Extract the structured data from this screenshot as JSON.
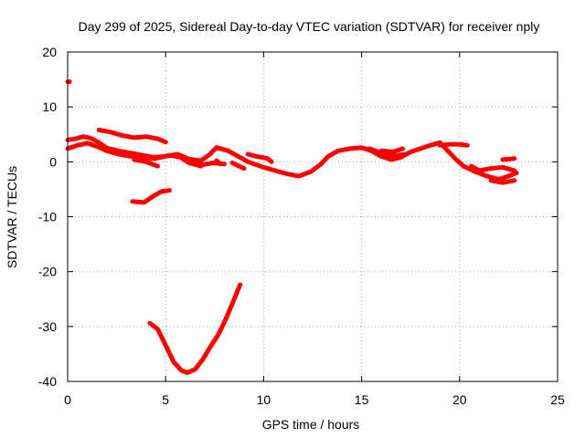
{
  "chart_data": {
    "type": "scatter",
    "title": "Day 299 of 2025, Sidereal Day-to-day VTEC variation (SDTVAR) for receiver nply",
    "xlabel": "GPS time / hours",
    "ylabel": "SDTVAR / TECUs",
    "xlim": [
      0,
      25
    ],
    "ylim": [
      -40,
      20
    ],
    "x_ticks": [
      0,
      5,
      10,
      15,
      20,
      25
    ],
    "y_ticks": [
      -40,
      -30,
      -20,
      -10,
      0,
      10,
      20
    ],
    "grid": true,
    "series_color": "#ff0000",
    "series": [
      {
        "name": "trace-a",
        "points": [
          [
            0,
            4
          ],
          [
            0.4,
            4.2
          ],
          [
            0.8,
            4.6
          ],
          [
            1.2,
            4.3
          ],
          [
            1.6,
            3.5
          ],
          [
            2.0,
            2.5
          ],
          [
            2.6,
            2.0
          ],
          [
            3.2,
            1.6
          ],
          [
            3.8,
            1.2
          ],
          [
            4.4,
            0.8
          ],
          [
            5.0,
            1.0
          ],
          [
            5.6,
            1.4
          ],
          [
            6.2,
            0.5
          ],
          [
            6.8,
            0.2
          ],
          [
            7.2,
            1.2
          ],
          [
            7.6,
            2.6
          ],
          [
            8.2,
            2.0
          ],
          [
            8.8,
            0.8
          ],
          [
            9.2,
            0.0
          ],
          [
            10.0,
            -1.0
          ],
          [
            10.6,
            -1.6
          ],
          [
            11.2,
            -2.2
          ],
          [
            11.8,
            -2.6
          ],
          [
            12.4,
            -1.8
          ],
          [
            12.9,
            -0.5
          ],
          [
            13.3,
            1.0
          ],
          [
            13.8,
            2.0
          ],
          [
            14.4,
            2.4
          ],
          [
            15.0,
            2.6
          ],
          [
            15.5,
            2.0
          ],
          [
            16.0,
            1.0
          ],
          [
            16.5,
            0.4
          ],
          [
            17.0,
            0.8
          ],
          [
            17.5,
            1.8
          ],
          [
            18.0,
            2.4
          ],
          [
            18.5,
            3.0
          ],
          [
            19.0,
            3.5
          ],
          [
            19.4,
            2.0
          ],
          [
            19.8,
            0.5
          ],
          [
            20.2,
            -0.8
          ],
          [
            20.8,
            -1.8
          ],
          [
            21.4,
            -2.6
          ],
          [
            22.0,
            -3.2
          ],
          [
            22.5,
            -2.6
          ],
          [
            22.9,
            -2.0
          ]
        ]
      },
      {
        "name": "trace-b",
        "points": [
          [
            0,
            2.4
          ],
          [
            0.5,
            3.0
          ],
          [
            1.0,
            3.4
          ],
          [
            1.5,
            2.8
          ],
          [
            2.0,
            2.0
          ],
          [
            2.6,
            1.4
          ],
          [
            3.2,
            1.0
          ],
          [
            3.8,
            0.6
          ],
          [
            4.5,
            0.6
          ],
          [
            5.2,
            1.2
          ],
          [
            5.8,
            0.8
          ],
          [
            6.3,
            -0.2
          ],
          [
            6.8,
            -0.6
          ],
          [
            7.4,
            -0.2
          ],
          [
            8.0,
            -0.4
          ]
        ]
      },
      {
        "name": "trace-c",
        "points": [
          [
            1.6,
            5.8
          ],
          [
            2.2,
            5.4
          ],
          [
            2.8,
            4.8
          ],
          [
            3.4,
            4.4
          ],
          [
            4.0,
            4.6
          ],
          [
            4.6,
            4.2
          ],
          [
            5.0,
            3.6
          ]
        ]
      },
      {
        "name": "trace-d",
        "points": [
          [
            3.4,
            0.4
          ],
          [
            4.0,
            0.0
          ],
          [
            4.6,
            -0.8
          ]
        ]
      },
      {
        "name": "trace-e",
        "points": [
          [
            5.6,
            1.2
          ],
          [
            6.2,
            -0.2
          ],
          [
            6.8,
            -0.8
          ]
        ]
      },
      {
        "name": "trace-f",
        "points": [
          [
            7.6,
            0.2
          ],
          [
            7.8,
            -0.4
          ]
        ]
      },
      {
        "name": "trace-g",
        "points": [
          [
            8.4,
            -0.2
          ],
          [
            9.0,
            -1.2
          ]
        ]
      },
      {
        "name": "trace-h",
        "points": [
          [
            9.2,
            1.4
          ],
          [
            9.6,
            1.0
          ],
          [
            10.2,
            0.6
          ],
          [
            10.4,
            0.0
          ]
        ]
      },
      {
        "name": "trace-i",
        "points": [
          [
            15.4,
            2.4
          ],
          [
            16.0,
            1.6
          ],
          [
            16.6,
            1.0
          ],
          [
            17.2,
            1.4
          ]
        ]
      },
      {
        "name": "trace-j",
        "points": [
          [
            16.0,
            2.0
          ],
          [
            16.6,
            1.8
          ],
          [
            17.1,
            2.4
          ]
        ]
      },
      {
        "name": "trace-k",
        "points": [
          [
            19.0,
            3.0
          ],
          [
            19.5,
            3.2
          ],
          [
            20.0,
            3.2
          ],
          [
            20.4,
            3.0
          ]
        ]
      },
      {
        "name": "trace-l",
        "points": [
          [
            20.6,
            -0.8
          ],
          [
            21.0,
            -1.6
          ],
          [
            21.6,
            -1.2
          ],
          [
            22.2,
            -1.0
          ],
          [
            22.8,
            -1.6
          ]
        ]
      },
      {
        "name": "trace-m",
        "points": [
          [
            22.2,
            0.4
          ],
          [
            22.8,
            0.6
          ]
        ]
      },
      {
        "name": "trace-n",
        "points": [
          [
            21.6,
            -3.4
          ],
          [
            22.2,
            -3.8
          ],
          [
            22.8,
            -3.4
          ]
        ]
      },
      {
        "name": "trace-o",
        "points": [
          [
            3.3,
            -7.2
          ],
          [
            3.9,
            -7.4
          ],
          [
            4.4,
            -6.2
          ],
          [
            4.8,
            -5.4
          ],
          [
            5.2,
            -5.2
          ]
        ]
      },
      {
        "name": "trace-p",
        "points": [
          [
            4.2,
            -29.4
          ],
          [
            4.6,
            -30.5
          ],
          [
            5.0,
            -33.4
          ],
          [
            5.4,
            -36.4
          ],
          [
            5.8,
            -38.0
          ],
          [
            6.1,
            -38.4
          ],
          [
            6.5,
            -37.8
          ],
          [
            6.9,
            -36.0
          ],
          [
            7.3,
            -33.6
          ],
          [
            7.7,
            -31.4
          ],
          [
            8.1,
            -28.4
          ],
          [
            8.5,
            -25.0
          ],
          [
            8.8,
            -22.4
          ]
        ]
      },
      {
        "name": "trace-q",
        "points": [
          [
            0,
            14.6
          ],
          [
            0.1,
            14.6
          ]
        ]
      }
    ]
  }
}
